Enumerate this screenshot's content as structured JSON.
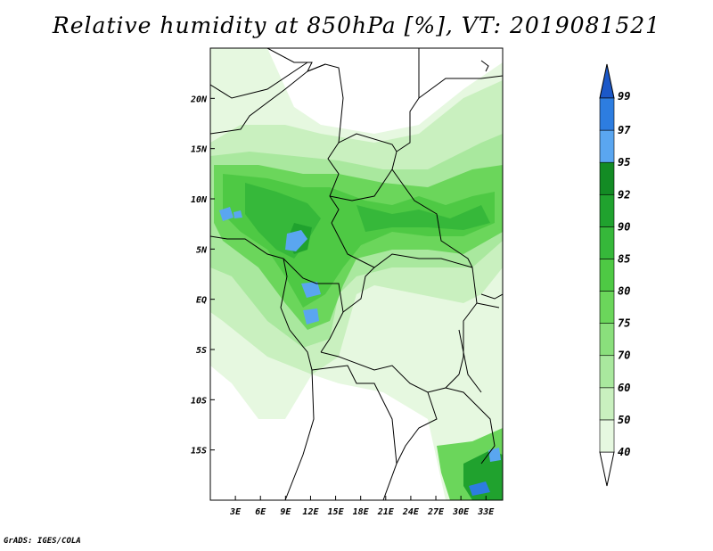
{
  "title": "Relative humidity at 850hPa [%], VT: 2019081521",
  "footer": "GrADS: IGES/COLA",
  "map": {
    "lon_range": [
      0,
      35
    ],
    "lat_range": [
      -20,
      25
    ],
    "lat_ticks": [
      "20N",
      "15N",
      "10N",
      "5N",
      "EQ",
      "5S",
      "10S",
      "15S"
    ],
    "lon_ticks": [
      "3E",
      "6E",
      "9E",
      "12E",
      "15E",
      "18E",
      "21E",
      "24E",
      "27E",
      "30E",
      "33E"
    ]
  },
  "colorbar": {
    "labels": [
      "99",
      "97",
      "95",
      "92",
      "90",
      "85",
      "80",
      "75",
      "70",
      "60",
      "50",
      "40"
    ],
    "colors": [
      "#ffffff",
      "#e6f8e0",
      "#c9f0bf",
      "#a9e89e",
      "#8adf7c",
      "#6bd65b",
      "#4ec944",
      "#36b83a",
      "#20a22e",
      "#138b24",
      "#5aa6f0",
      "#2d7de0",
      "#1b58c8"
    ]
  }
}
